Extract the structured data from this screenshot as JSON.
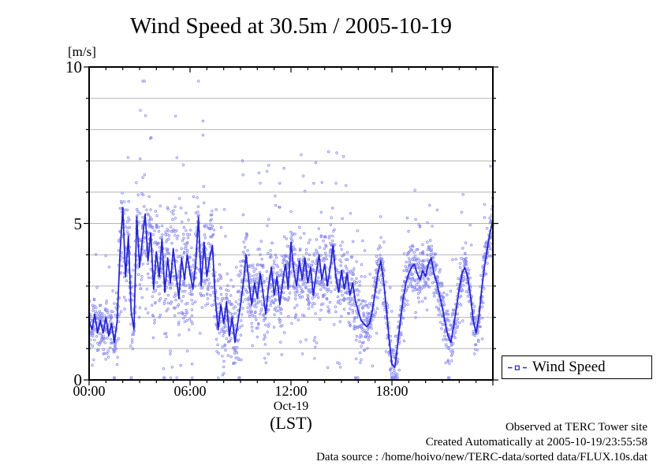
{
  "chart": {
    "title": "Wind Speed at 30.5m / 2005-10-19",
    "y_unit_label": "[m/s]",
    "x_sublabel_date": "Oct-19",
    "x_sublabel_tz": "(LST)",
    "legend": {
      "label": "Wind Speed"
    },
    "footer_lines": [
      "Observed at TERC Tower site",
      "Created Automatically at 2005-10-19/23:55:58",
      "Data source : /home/hoivo/new/TERC-data/sorted  data/FLUX.10s.dat"
    ]
  },
  "chart_data": {
    "type": "scatter",
    "title": "Wind Speed at 30.5m / 2005-10-19",
    "ylabel": "[m/s]",
    "xlabel": "Oct-19 (LST)",
    "x_range_hours": [
      0,
      24
    ],
    "ylim": [
      0,
      10
    ],
    "grid": {
      "horizontal_every": 1,
      "color": "#b5b5b5"
    },
    "x_major_ticks": [
      {
        "hour": 0,
        "label": "00:00"
      },
      {
        "hour": 6,
        "label": "06:00"
      },
      {
        "hour": 12,
        "label": "12:00"
      },
      {
        "hour": 18,
        "label": "18:00"
      }
    ],
    "x_minor_tick_every_hours": 1,
    "y_major_ticks": [
      {
        "value": 0,
        "label": "0"
      },
      {
        "value": 5,
        "label": "5"
      },
      {
        "value": 10,
        "label": "10"
      }
    ],
    "y_minor_tick_every": 1,
    "colors": {
      "scatter": "#8a8aef",
      "mean_line": "#2323d0",
      "frame": "#000000"
    },
    "series_name": "Wind Speed",
    "mean_line_10min": {
      "start_hour": 0,
      "step_minutes": 10,
      "values": [
        1.9,
        1.6,
        2.1,
        1.5,
        1.9,
        1.5,
        2.0,
        1.4,
        1.8,
        1.2,
        1.9,
        4.0,
        5.5,
        3.3,
        4.6,
        2.2,
        1.6,
        5.2,
        3.6,
        4.5,
        5.3,
        3.8,
        4.7,
        2.9,
        4.1,
        3.3,
        4.5,
        2.8,
        3.9,
        3.1,
        4.2,
        3.4,
        2.6,
        3.9,
        3.2,
        4.0,
        3.4,
        2.9,
        3.7,
        5.2,
        3.0,
        4.4,
        3.3,
        3.9,
        4.3,
        2.6,
        1.6,
        2.4,
        1.8,
        2.5,
        1.4,
        2.0,
        1.2,
        1.8,
        2.4,
        3.1,
        4.0,
        3.1,
        2.4,
        3.1,
        2.6,
        3.4,
        2.8,
        2.1,
        3.0,
        3.6,
        2.7,
        3.3,
        2.4,
        3.1,
        3.7,
        2.9,
        4.4,
        3.5,
        3.0,
        3.8,
        3.2,
        3.9,
        3.1,
        3.6,
        2.7,
        3.4,
        4.0,
        3.2,
        3.7,
        3.0,
        3.6,
        4.3,
        3.3,
        2.8,
        3.5,
        2.9,
        3.4,
        2.7,
        3.1,
        2.5,
        2.2,
        1.9,
        1.8,
        1.7,
        1.8,
        2.2,
        2.8,
        3.4,
        3.8,
        3.2,
        2.3,
        1.3,
        0.5,
        0.4,
        1.1,
        1.9,
        2.6,
        3.1,
        3.4,
        3.6,
        3.7,
        3.4,
        3.2,
        3.5,
        3.3,
        3.7,
        3.9,
        3.4,
        3.1,
        2.7,
        2.3,
        1.8,
        1.4,
        1.2,
        1.7,
        2.3,
        2.9,
        3.4,
        3.6,
        3.3,
        2.7,
        1.9,
        1.5,
        2.0,
        2.9,
        3.6,
        4.2,
        4.7,
        5.1
      ]
    },
    "scatter_10s": {
      "seed": 20051019,
      "count": 2800,
      "outlier_prob": 0.03,
      "low_outlier_prob": 0.025,
      "spread_by_period": [
        {
          "from": 0.0,
          "to": 1.7,
          "spread": 0.8
        },
        {
          "from": 1.7,
          "to": 8.0,
          "spread": 2.1
        },
        {
          "from": 8.0,
          "to": 16.2,
          "spread": 1.5
        },
        {
          "from": 16.2,
          "to": 24.0,
          "spread": 0.95
        }
      ]
    }
  }
}
